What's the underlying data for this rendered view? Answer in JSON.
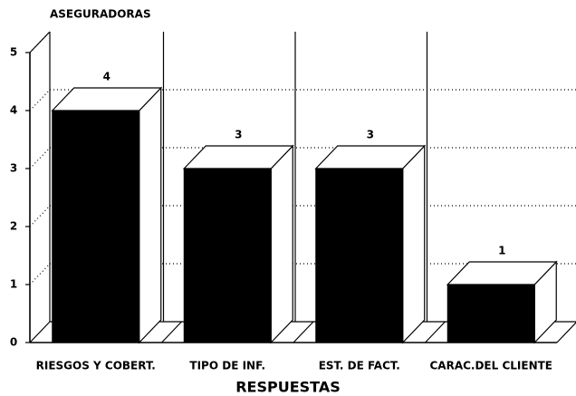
{
  "chart_data": {
    "type": "bar3d",
    "title": "ASEGURADORAS",
    "x_label": "RESPUESTAS",
    "categories": [
      "RIESGOS Y COBERT.",
      "TIPO DE INF.",
      "EST. DE FACT.",
      "CARAC.DEL CLIENTE"
    ],
    "values": [
      4,
      3,
      3,
      1
    ],
    "color": "#000000",
    "ylim": [
      0,
      5
    ],
    "yticks": [
      0,
      1,
      2,
      3,
      4,
      5
    ],
    "grid": true
  }
}
